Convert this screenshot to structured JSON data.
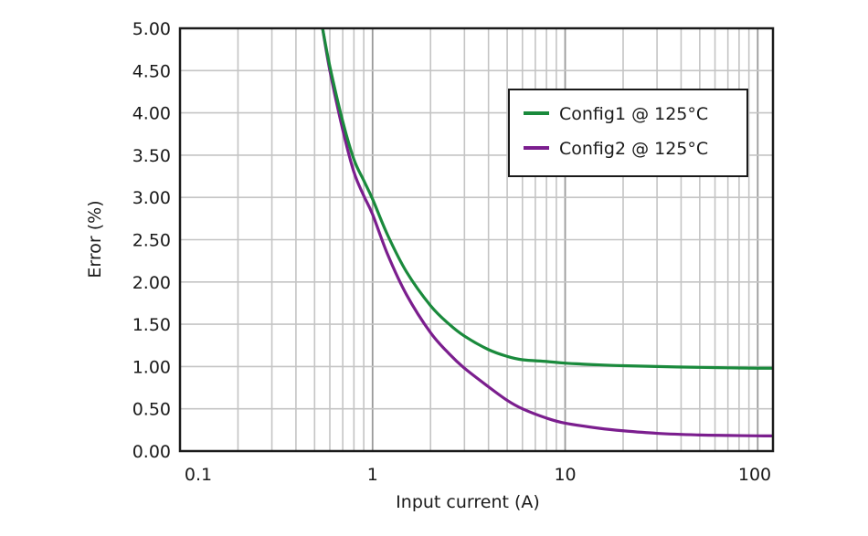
{
  "chart_data": {
    "type": "line",
    "title": "",
    "xlabel": "Input current (A)",
    "ylabel": "Error (%)",
    "xscale": "log",
    "xlim": [
      0.1,
      120
    ],
    "ylim": [
      0,
      5.0
    ],
    "grid": true,
    "x_ticks": [
      "0.1",
      "1",
      "10",
      "100"
    ],
    "y_ticks": [
      "0.00",
      "0.50",
      "1.00",
      "1.50",
      "2.00",
      "2.50",
      "3.00",
      "3.50",
      "4.00",
      "4.50",
      "5.00"
    ],
    "legend_position": "upper right (inset)",
    "series": [
      {
        "name": "Config1 @ 125°C",
        "color": "#1a8a3c",
        "x": [
          0.55,
          0.6,
          0.7,
          0.8,
          0.9,
          1.0,
          1.2,
          1.5,
          2.0,
          2.5,
          3.0,
          4.0,
          5.0,
          6.0,
          8.0,
          10,
          15,
          20,
          30,
          50,
          70,
          100,
          120
        ],
        "y": [
          5.0,
          4.55,
          3.9,
          3.45,
          3.2,
          2.98,
          2.55,
          2.12,
          1.72,
          1.5,
          1.36,
          1.2,
          1.12,
          1.08,
          1.06,
          1.04,
          1.02,
          1.01,
          1.0,
          0.99,
          0.985,
          0.98,
          0.98
        ]
      },
      {
        "name": "Config2 @ 125°C",
        "color": "#7b1e8e",
        "x": [
          0.55,
          0.6,
          0.7,
          0.8,
          0.9,
          1.0,
          1.2,
          1.5,
          2.0,
          2.5,
          3.0,
          4.0,
          5.0,
          6.0,
          8.0,
          10,
          15,
          20,
          30,
          50,
          70,
          100,
          120
        ],
        "y": [
          5.0,
          4.5,
          3.8,
          3.3,
          3.02,
          2.8,
          2.32,
          1.85,
          1.4,
          1.15,
          0.98,
          0.76,
          0.6,
          0.5,
          0.39,
          0.33,
          0.27,
          0.24,
          0.21,
          0.19,
          0.185,
          0.18,
          0.18
        ]
      }
    ]
  }
}
